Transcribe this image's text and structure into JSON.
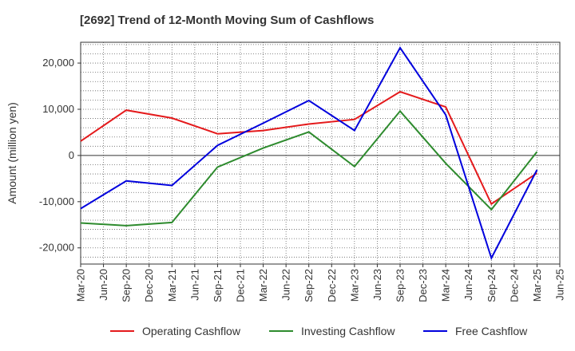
{
  "chart_data": {
    "type": "line",
    "title": "[2692]  Trend of 12-Month Moving Sum of Cashflows",
    "xlabel": "",
    "ylabel": "Amount (million yen)",
    "x": [
      "Mar-20",
      "Jun-20",
      "Sep-20",
      "Dec-20",
      "Mar-21",
      "Jun-21",
      "Sep-21",
      "Dec-21",
      "Mar-22",
      "Jun-22",
      "Sep-22",
      "Dec-22",
      "Mar-23",
      "Jun-23",
      "Sep-23",
      "Dec-23",
      "Mar-24",
      "Jun-24",
      "Sep-24",
      "Dec-24",
      "Mar-25",
      "Jun-25"
    ],
    "ylim": [
      -23500,
      24500
    ],
    "yticks": [
      -20000,
      -10000,
      0,
      10000,
      20000
    ],
    "ytick_labels": [
      "-20,000",
      "-10,000",
      "0",
      "10,000",
      "20,000"
    ],
    "grid": true,
    "legend_position": "bottom",
    "series": [
      {
        "name": "Operating Cashflow",
        "color": "#e41a1c",
        "values": [
          3100,
          null,
          9800,
          null,
          8100,
          null,
          4700,
          null,
          5400,
          null,
          6800,
          null,
          7800,
          null,
          13800,
          null,
          10500,
          null,
          -10500,
          null,
          -3800,
          null
        ]
      },
      {
        "name": "Investing Cashflow",
        "color": "#2e8b2e",
        "values": [
          -14600,
          null,
          -15200,
          null,
          -14500,
          null,
          -2500,
          null,
          1600,
          null,
          5100,
          null,
          -2400,
          null,
          9600,
          null,
          -1700,
          null,
          -11700,
          null,
          800,
          null
        ]
      },
      {
        "name": "Free Cashflow",
        "color": "#0000dd",
        "values": [
          -11500,
          null,
          -5500,
          null,
          -6500,
          null,
          2200,
          null,
          7000,
          null,
          11900,
          null,
          5400,
          null,
          23300,
          null,
          8800,
          null,
          -22200,
          null,
          -3100,
          null
        ]
      }
    ]
  }
}
